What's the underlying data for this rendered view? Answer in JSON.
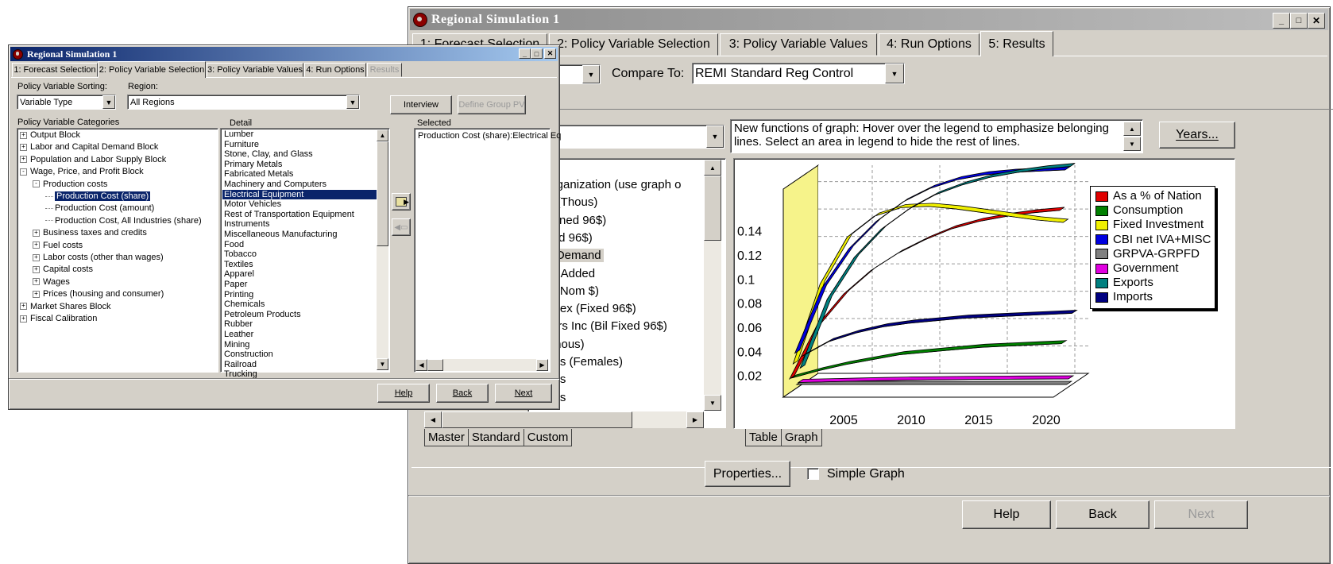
{
  "back_window": {
    "title": "Regional Simulation 1",
    "tabs": [
      {
        "label": "1: Forecast Selection"
      },
      {
        "label": "2: Policy Variable Selection"
      },
      {
        "label": "3: Policy Variable Values"
      },
      {
        "label": "4: Run Options"
      },
      {
        "label": "5: Results"
      }
    ],
    "compare_to_label": "Compare To:",
    "compare_to_value": "REMI Standard Reg Control",
    "info_text": "New functions of graph: Hover over the legend to emphasize belonging lines. Select an area in legend to hide the rest of lines.",
    "years_button": "Years...",
    "variable_list": [
      "Organization (use graph o",
      "nt (Thous)",
      "hained 96$)",
      "ixed 96$)",
      "al Demand",
      "ue-Added",
      "Bil Nom $)",
      "Index (Fixed 96$)",
      "Pers Inc (Bil Fixed 96$)",
      "(Thous)",
      "ates (Females)",
      "ates",
      "ents"
    ],
    "left_tabs": [
      {
        "label": "Master"
      },
      {
        "label": "Standard"
      },
      {
        "label": "Custom"
      }
    ],
    "graph_tabs": [
      {
        "label": "Table"
      },
      {
        "label": "Graph"
      }
    ],
    "properties_button": "Properties...",
    "simple_graph_label": "Simple Graph",
    "help_button": "Help",
    "back_button": "Back",
    "next_button": "Next"
  },
  "front_window": {
    "title": "Regional Simulation 1",
    "tabs": [
      {
        "label": "1: Forecast Selection"
      },
      {
        "label": "2: Policy Variable Selection"
      },
      {
        "label": "3: Policy Variable Values"
      },
      {
        "label": "4: Run Options"
      },
      {
        "label": "Results"
      }
    ],
    "sorting_label": "Policy Variable Sorting:",
    "sorting_value": "Variable Type",
    "region_label": "Region:",
    "region_value": "All Regions",
    "interview_button": "Interview",
    "define_group_button": "Define Group PV",
    "categories_label": "Policy Variable Categories",
    "detail_label": "Detail",
    "selected_label": "Selected",
    "tree": [
      {
        "text": "Output Block",
        "level": 0,
        "toggle": "+"
      },
      {
        "text": "Labor and Capital Demand Block",
        "level": 0,
        "toggle": "+"
      },
      {
        "text": "Population and Labor Supply Block",
        "level": 0,
        "toggle": "+"
      },
      {
        "text": "Wage, Price, and Profit Block",
        "level": 0,
        "toggle": "-"
      },
      {
        "text": "Production costs",
        "level": 1,
        "toggle": "-"
      },
      {
        "text": "Production Cost (share)",
        "level": 2,
        "toggle": "",
        "selected": true
      },
      {
        "text": "Production Cost (amount)",
        "level": 2,
        "toggle": ""
      },
      {
        "text": "Production Cost, All Industries (share)",
        "level": 2,
        "toggle": ""
      },
      {
        "text": "Business taxes and credits",
        "level": 1,
        "toggle": "+"
      },
      {
        "text": "Fuel costs",
        "level": 1,
        "toggle": "+"
      },
      {
        "text": "Labor costs (other than wages)",
        "level": 1,
        "toggle": "+"
      },
      {
        "text": "Capital costs",
        "level": 1,
        "toggle": "+"
      },
      {
        "text": "Wages",
        "level": 1,
        "toggle": "+"
      },
      {
        "text": "Prices (housing and consumer)",
        "level": 1,
        "toggle": "+"
      },
      {
        "text": "Market Shares Block",
        "level": 0,
        "toggle": "+"
      },
      {
        "text": "Fiscal Calibration",
        "level": 0,
        "toggle": "+"
      }
    ],
    "detail_items": [
      "Lumber",
      "Furniture",
      "Stone, Clay, and Glass",
      "Primary Metals",
      "Fabricated Metals",
      "Machinery and Computers",
      "Electrical Equipment",
      "Motor Vehicles",
      "Rest of Transportation Equipment",
      "Instruments",
      "Miscellaneous Manufacturing",
      "Food",
      "Tobacco",
      "Textiles",
      "Apparel",
      "Paper",
      "Printing",
      "Chemicals",
      "Petroleum Products",
      "Rubber",
      "Leather",
      "Mining",
      "Construction",
      "Railroad",
      "Trucking"
    ],
    "detail_selected_index": 6,
    "selected_items": [
      "Production Cost (share):Electrical Eq"
    ],
    "help_button": "Help",
    "back_button": "Back",
    "next_button": "Next"
  },
  "chart_data": {
    "type": "line",
    "x_ticks": [
      "2005",
      "2010",
      "2015",
      "2020"
    ],
    "y_ticks": [
      "0.02",
      "0.04",
      "0.06",
      "0.08",
      "0.1",
      "0.12",
      "0.14"
    ],
    "legend_position": "right",
    "x": [
      2001,
      2003,
      2005,
      2007,
      2009,
      2011,
      2013,
      2015,
      2017,
      2019,
      2021
    ],
    "series": [
      {
        "name": "As a % of Nation",
        "color": "#e00000",
        "values": [
          0.011,
          0.054,
          0.08,
          0.099,
          0.113,
          0.124,
          0.133,
          0.139,
          0.143,
          0.146,
          0.148
        ]
      },
      {
        "name": "Consumption",
        "color": "#008000",
        "values": [
          0.01,
          0.016,
          0.021,
          0.025,
          0.029,
          0.031,
          0.033,
          0.035,
          0.036,
          0.037,
          0.038
        ]
      },
      {
        "name": "Fixed Investment",
        "color": "#f0f000",
        "values": [
          0.02,
          0.085,
          0.123,
          0.14,
          0.147,
          0.148,
          0.146,
          0.143,
          0.14,
          0.137,
          0.135
        ]
      },
      {
        "name": "CBI net IVA+MISC",
        "color": "#0000e0",
        "values": [
          0.027,
          0.08,
          0.112,
          0.134,
          0.15,
          0.161,
          0.168,
          0.172,
          0.174,
          0.175,
          0.176
        ]
      },
      {
        "name": "GRPVA-GRPFD",
        "color": "#808080",
        "values": [
          0.0,
          0.0,
          0.0,
          0.0,
          0.0,
          0.0,
          0.0,
          0.0,
          0.0,
          0.0,
          0.0
        ]
      },
      {
        "name": "Government",
        "color": "#e000e0",
        "values": [
          0.0,
          0.0005,
          0.001,
          0.0015,
          0.0019,
          0.0022,
          0.0024,
          0.0026,
          0.0027,
          0.0028,
          0.0029
        ]
      },
      {
        "name": "Exports",
        "color": "#008080",
        "values": [
          0.01,
          0.066,
          0.1,
          0.123,
          0.139,
          0.151,
          0.159,
          0.165,
          0.169,
          0.172,
          0.174
        ]
      },
      {
        "name": "Imports",
        "color": "#000080",
        "values": [
          0.018,
          0.03,
          0.037,
          0.042,
          0.045,
          0.047,
          0.049,
          0.05,
          0.051,
          0.052,
          0.053
        ]
      }
    ]
  }
}
